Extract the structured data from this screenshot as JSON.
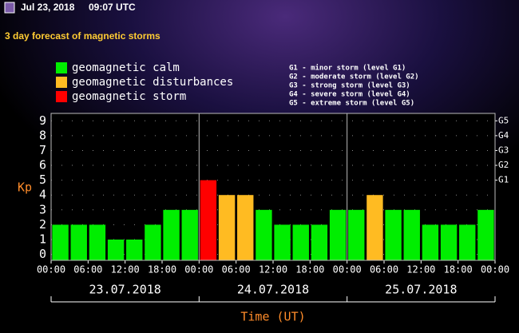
{
  "header": {
    "date": "Jul 23, 2018",
    "time": "09:07 UTC",
    "subtitle": "3 day forecast of magnetic storms"
  },
  "legend": [
    {
      "name": "geomagnetic calm",
      "color": "#00ee00"
    },
    {
      "name": "geomagnetic disturbances",
      "color": "#ffbb22"
    },
    {
      "name": "geomagnetic storm",
      "color": "#ff0000"
    }
  ],
  "storm_levels": [
    "G1 - minor storm (level G1)",
    "G2 - moderate storm (level G2)",
    "G3 - strong storm (level G3)",
    "G4 - severe storm (level G4)",
    "G5 - extreme storm (level G5)"
  ],
  "chart_data": {
    "type": "bar",
    "ylabel": "Kp",
    "xlabel": "Time (UT)",
    "x": [
      0,
      3,
      6,
      9,
      12,
      15,
      18,
      21,
      24,
      27,
      30,
      33,
      36,
      39,
      42,
      45,
      48,
      51,
      54,
      57,
      60,
      63,
      66,
      69
    ],
    "values": [
      2,
      2,
      2,
      1,
      1,
      2,
      3,
      3,
      5,
      4,
      4,
      3,
      2,
      2,
      2,
      3,
      3,
      4,
      3,
      3,
      2,
      2,
      2,
      3
    ],
    "colors": [
      "#00ee00",
      "#00ee00",
      "#00ee00",
      "#00ee00",
      "#00ee00",
      "#00ee00",
      "#00ee00",
      "#00ee00",
      "#ff0000",
      "#ffbb22",
      "#ffbb22",
      "#00ee00",
      "#00ee00",
      "#00ee00",
      "#00ee00",
      "#00ee00",
      "#00ee00",
      "#ffbb22",
      "#00ee00",
      "#00ee00",
      "#00ee00",
      "#00ee00",
      "#00ee00",
      "#00ee00"
    ],
    "bar_span": 3,
    "days": [
      "23.07.2018",
      "24.07.2018",
      "25.07.2018"
    ],
    "xlim": [
      0,
      72
    ],
    "xticks": [
      {
        "value": 0,
        "label": "00:00"
      },
      {
        "value": 6,
        "label": "06:00"
      },
      {
        "value": 12,
        "label": "12:00"
      },
      {
        "value": 18,
        "label": "18:00"
      },
      {
        "value": 24,
        "label": "00:00"
      },
      {
        "value": 30,
        "label": "06:00"
      },
      {
        "value": 36,
        "label": "12:00"
      },
      {
        "value": 42,
        "label": "18:00"
      },
      {
        "value": 48,
        "label": "00:00"
      },
      {
        "value": 54,
        "label": "06:00"
      },
      {
        "value": 60,
        "label": "12:00"
      },
      {
        "value": 66,
        "label": "18:00"
      },
      {
        "value": 72,
        "label": "00:00"
      }
    ],
    "ylim": [
      -0.4,
      9.5
    ],
    "yticks": [
      0,
      1,
      2,
      3,
      4,
      5,
      6,
      7,
      8,
      9
    ],
    "y2ticks": [
      {
        "value": 5,
        "label": "G1"
      },
      {
        "value": 6,
        "label": "G2"
      },
      {
        "value": 7,
        "label": "G3"
      },
      {
        "value": 8,
        "label": "G4"
      },
      {
        "value": 9,
        "label": "G5"
      }
    ],
    "grid": true
  }
}
